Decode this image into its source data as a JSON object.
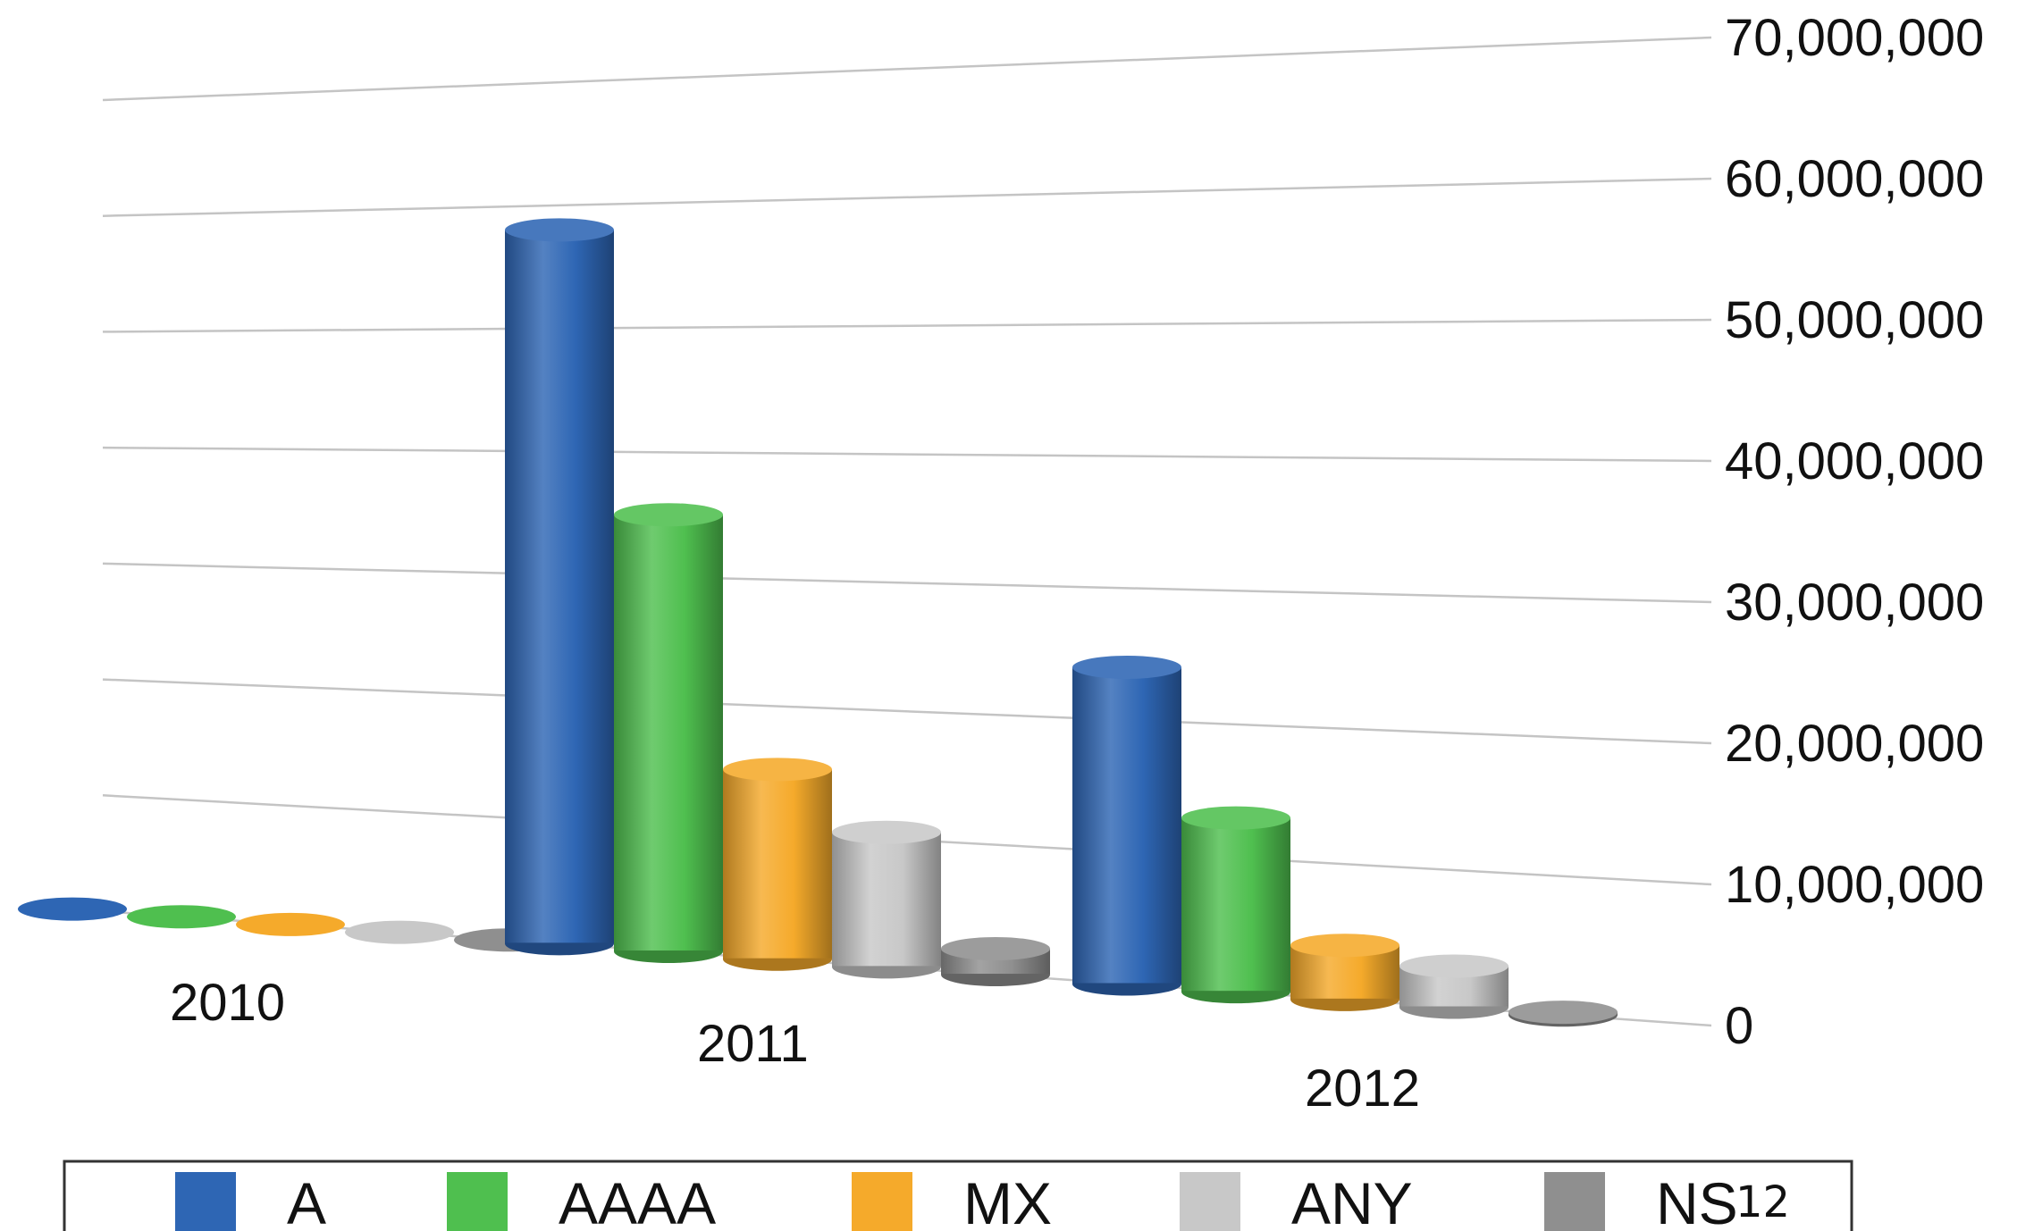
{
  "chart_data": {
    "type": "bar",
    "categories": [
      "2010",
      "2011",
      "2012"
    ],
    "series": [
      {
        "name": "A",
        "color": "#2e66b4",
        "values": [
          0,
          58000000,
          24000000
        ]
      },
      {
        "name": "AAAA",
        "color": "#4fbf4f",
        "values": [
          0,
          35000000,
          13000000
        ]
      },
      {
        "name": "MX",
        "color": "#f5aa2b",
        "values": [
          0,
          15000000,
          4000000
        ]
      },
      {
        "name": "ANY",
        "color": "#c8c8c8",
        "values": [
          0,
          10500000,
          3000000
        ]
      },
      {
        "name": "NS",
        "color": "#8f8f8f",
        "values": [
          0,
          2000000,
          200000
        ]
      }
    ],
    "ylim": [
      0,
      70000000
    ],
    "yticks": [
      "0",
      "10,000,000",
      "20,000,000",
      "30,000,000",
      "40,000,000",
      "50,000,000",
      "60,000,000",
      "70,000,000"
    ],
    "grid": true,
    "legend": "bottom",
    "style": "3d-cylinder"
  },
  "slide_number": "12"
}
